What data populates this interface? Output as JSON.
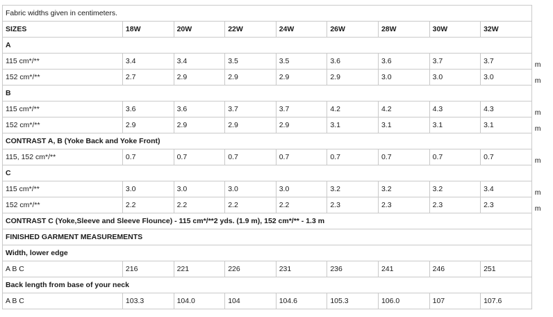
{
  "note": "Fabric widths given in centimeters.",
  "sizes_label": "SIZES",
  "sizes": [
    "18W",
    "20W",
    "22W",
    "24W",
    "26W",
    "28W",
    "30W",
    "32W"
  ],
  "sections": [
    {
      "title": "A",
      "rows": [
        {
          "label": "115 cm*/**",
          "values": [
            "3.4",
            "3.4",
            "3.5",
            "3.5",
            "3.6",
            "3.6",
            "3.7",
            "3.7"
          ],
          "unit": "m"
        },
        {
          "label": "152 cm*/**",
          "values": [
            "2.7",
            "2.9",
            "2.9",
            "2.9",
            "2.9",
            "3.0",
            "3.0",
            "3.0"
          ],
          "unit": "m"
        }
      ]
    },
    {
      "title": "B",
      "rows": [
        {
          "label": "115 cm*/**",
          "values": [
            "3.6",
            "3.6",
            "3.7",
            "3.7",
            "4.2",
            "4.2",
            "4.3",
            "4.3"
          ],
          "unit": "m"
        },
        {
          "label": "152 cm*/**",
          "values": [
            "2.9",
            "2.9",
            "2.9",
            "2.9",
            "3.1",
            "3.1",
            "3.1",
            "3.1"
          ],
          "unit": "m"
        }
      ]
    },
    {
      "title": "CONTRAST A, B (Yoke Back and Yoke Front)",
      "rows": [
        {
          "label": "115, 152 cm*/**",
          "values": [
            "0.7",
            "0.7",
            "0.7",
            "0.7",
            "0.7",
            "0.7",
            "0.7",
            "0.7"
          ],
          "unit": "m"
        }
      ]
    },
    {
      "title": "C",
      "rows": [
        {
          "label": "115 cm*/**",
          "values": [
            "3.0",
            "3.0",
            "3.0",
            "3.0",
            "3.2",
            "3.2",
            "3.2",
            "3.4"
          ],
          "unit": "m"
        },
        {
          "label": "152 cm*/**",
          "values": [
            "2.2",
            "2.2",
            "2.2",
            "2.2",
            "2.3",
            "2.3",
            "2.3",
            "2.3"
          ],
          "unit": "m"
        }
      ]
    },
    {
      "title": "CONTRAST C (Yoke,Sleeve and Sleeve Flounce) - 115 cm*/**2 yds. (1.9 m), 152 cm*/** - 1.3 m",
      "rows": []
    },
    {
      "title": "FINISHED GARMENT MEASUREMENTS",
      "rows": []
    },
    {
      "title": "Width, lower edge",
      "rows": [
        {
          "label": "A B C",
          "values": [
            "216",
            "221",
            "226",
            "231",
            "236",
            "241",
            "246",
            "251"
          ],
          "unit": ""
        }
      ]
    },
    {
      "title": "Back length from base of your neck",
      "rows": [
        {
          "label": "A B C",
          "values": [
            "103.3",
            "104.0",
            "104",
            "104.6",
            "105.3",
            "106.0",
            "107",
            "107.6"
          ],
          "unit": ""
        }
      ]
    }
  ]
}
